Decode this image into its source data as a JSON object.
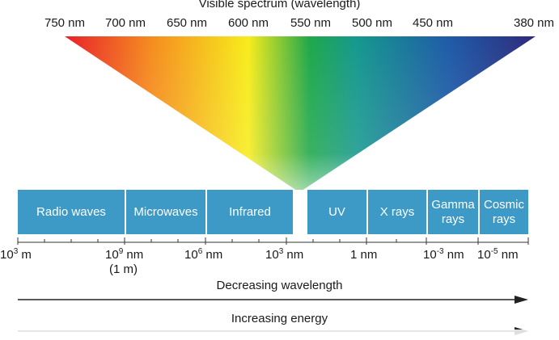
{
  "spectrum": {
    "title": "Visible spectrum (wavelength)",
    "wavelengths": [
      "750 nm",
      "700 nm",
      "650 nm",
      "600 nm",
      "550 nm",
      "500 nm",
      "450 nm",
      "380 nm"
    ]
  },
  "bands": [
    {
      "label": "Radio waves"
    },
    {
      "label": "Microwaves"
    },
    {
      "label": "Infrared"
    },
    {
      "label": ""
    },
    {
      "label": "UV"
    },
    {
      "label": "X rays"
    },
    {
      "label": "Gamma rays"
    },
    {
      "label": "Cosmic rays"
    }
  ],
  "scale": {
    "labels": [
      {
        "base": "10",
        "exp": "3",
        "unit": " m",
        "note": ""
      },
      {
        "base": "10",
        "exp": "9",
        "unit": " nm",
        "note": "(1 m)"
      },
      {
        "base": "10",
        "exp": "6",
        "unit": " nm",
        "note": ""
      },
      {
        "base": "10",
        "exp": "3",
        "unit": " nm",
        "note": ""
      },
      {
        "base": "",
        "exp": "",
        "unit": "1 nm",
        "note": ""
      },
      {
        "base": "10",
        "exp": "-3",
        "unit": " nm",
        "note": ""
      },
      {
        "base": "10",
        "exp": "-5",
        "unit": " nm",
        "note": ""
      }
    ]
  },
  "arrows": {
    "wavelength_label": "Decreasing wavelength",
    "energy_label": "Increasing energy"
  },
  "colors": {
    "band": "#3d9ac7",
    "spectrum_red": "#e8202a",
    "spectrum_orange": "#f58a1f",
    "spectrum_yellow": "#f7ec1b",
    "spectrum_green": "#1fa84a",
    "spectrum_teal": "#15988e",
    "spectrum_blue": "#1f5aa8",
    "spectrum_violet": "#2e2a7a"
  }
}
